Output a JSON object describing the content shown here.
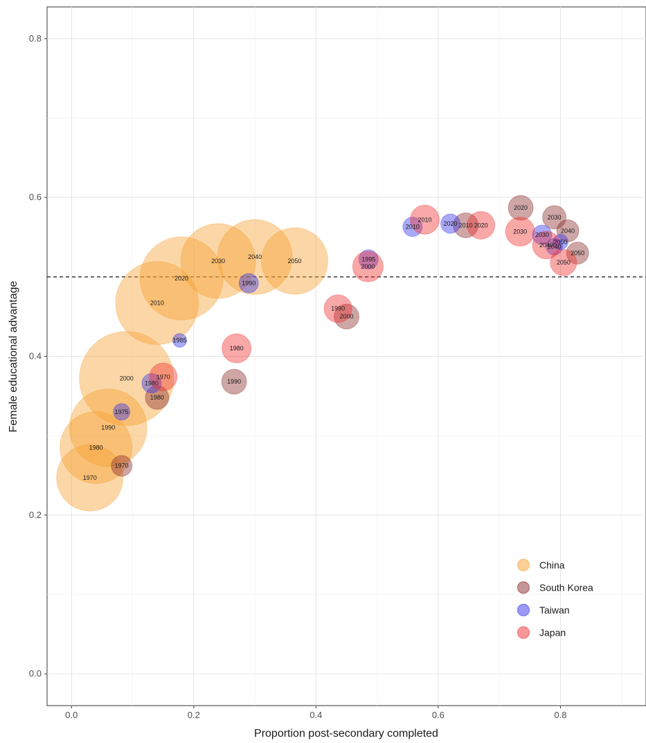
{
  "chart_data": {
    "type": "scatter",
    "subtype": "bubble",
    "xlabel": "Proportion post-secondary completed",
    "ylabel": "Female educational advantage",
    "xlim": [
      -0.04,
      0.94
    ],
    "ylim": [
      -0.04,
      0.84
    ],
    "x_ticks": [
      "0.0",
      "0.2",
      "0.4",
      "0.6",
      "0.8"
    ],
    "y_ticks": [
      "0.0",
      "0.2",
      "0.4",
      "0.6",
      "0.8"
    ],
    "grid": true,
    "reference_line": {
      "y": 0.5,
      "style": "dashed"
    },
    "legend_position": "bottom-right",
    "series": [
      {
        "name": "China",
        "color": "#F5A030",
        "points": [
          {
            "label": "1970",
            "x": 0.03,
            "y": 0.247,
            "size": 48
          },
          {
            "label": "1980",
            "x": 0.04,
            "y": 0.285,
            "size": 52
          },
          {
            "label": "1990",
            "x": 0.06,
            "y": 0.31,
            "size": 56
          },
          {
            "label": "2000",
            "x": 0.09,
            "y": 0.372,
            "size": 68
          },
          {
            "label": "2010",
            "x": 0.14,
            "y": 0.467,
            "size": 60
          },
          {
            "label": "2020",
            "x": 0.18,
            "y": 0.498,
            "size": 60
          },
          {
            "label": "2030",
            "x": 0.24,
            "y": 0.52,
            "size": 54
          },
          {
            "label": "2040",
            "x": 0.3,
            "y": 0.525,
            "size": 54
          },
          {
            "label": "2050",
            "x": 0.365,
            "y": 0.52,
            "size": 48
          }
        ]
      },
      {
        "name": "South Korea",
        "color": "#8B2A2A",
        "points": [
          {
            "label": "1970",
            "x": 0.082,
            "y": 0.262,
            "size": 15
          },
          {
            "label": "1980",
            "x": 0.14,
            "y": 0.348,
            "size": 17
          },
          {
            "label": "1990",
            "x": 0.266,
            "y": 0.368,
            "size": 18
          },
          {
            "label": "2000",
            "x": 0.45,
            "y": 0.45,
            "size": 18
          },
          {
            "label": "2010",
            "x": 0.645,
            "y": 0.565,
            "size": 18
          },
          {
            "label": "2020",
            "x": 0.735,
            "y": 0.587,
            "size": 18
          },
          {
            "label": "2030",
            "x": 0.79,
            "y": 0.575,
            "size": 17
          },
          {
            "label": "2040",
            "x": 0.812,
            "y": 0.558,
            "size": 16
          },
          {
            "label": "2050",
            "x": 0.828,
            "y": 0.53,
            "size": 16
          }
        ]
      },
      {
        "name": "Taiwan",
        "color": "#3333EE",
        "points": [
          {
            "label": "1975",
            "x": 0.082,
            "y": 0.33,
            "size": 12
          },
          {
            "label": "1980",
            "x": 0.131,
            "y": 0.366,
            "size": 14
          },
          {
            "label": "1985",
            "x": 0.177,
            "y": 0.42,
            "size": 10
          },
          {
            "label": "1990",
            "x": 0.29,
            "y": 0.492,
            "size": 14
          },
          {
            "label": "1995",
            "x": 0.486,
            "y": 0.522,
            "size": 14
          },
          {
            "label": "2010",
            "x": 0.558,
            "y": 0.563,
            "size": 14
          },
          {
            "label": "2020",
            "x": 0.62,
            "y": 0.567,
            "size": 14
          },
          {
            "label": "2030",
            "x": 0.77,
            "y": 0.553,
            "size": 14
          },
          {
            "label": "2040",
            "x": 0.79,
            "y": 0.538,
            "size": 12
          },
          {
            "label": "2050",
            "x": 0.8,
            "y": 0.544,
            "size": 11
          }
        ]
      },
      {
        "name": "Japan",
        "color": "#F03030",
        "points": [
          {
            "label": "1970",
            "x": 0.15,
            "y": 0.374,
            "size": 20
          },
          {
            "label": "1980",
            "x": 0.27,
            "y": 0.41,
            "size": 21
          },
          {
            "label": "1990",
            "x": 0.436,
            "y": 0.46,
            "size": 20
          },
          {
            "label": "2000",
            "x": 0.485,
            "y": 0.513,
            "size": 22
          },
          {
            "label": "2010",
            "x": 0.578,
            "y": 0.572,
            "size": 21
          },
          {
            "label": "2020",
            "x": 0.67,
            "y": 0.565,
            "size": 20
          },
          {
            "label": "2030",
            "x": 0.734,
            "y": 0.557,
            "size": 21
          },
          {
            "label": "2040",
            "x": 0.777,
            "y": 0.54,
            "size": 20
          },
          {
            "label": "2050",
            "x": 0.805,
            "y": 0.518,
            "size": 19
          }
        ]
      }
    ]
  }
}
